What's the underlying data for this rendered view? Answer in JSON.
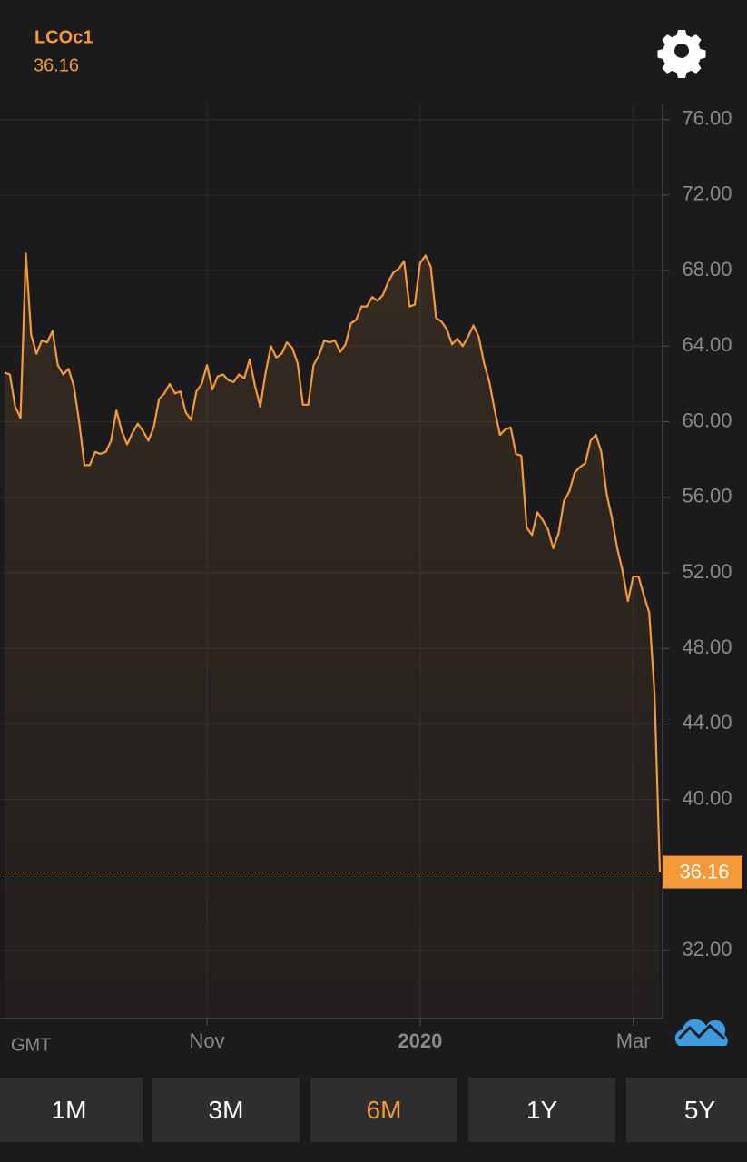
{
  "header": {
    "symbol": "LCOc1"
  },
  "chart_data": {
    "type": "line",
    "x_label": "GMT",
    "color": "#f59a3a",
    "grid": true,
    "ylim": [
      28.4,
      76.8
    ],
    "yticks": [
      {
        "value": 32,
        "label": "32.00"
      },
      {
        "value": 40,
        "label": "40.00"
      },
      {
        "value": 44,
        "label": "44.00"
      },
      {
        "value": 48,
        "label": "48.00"
      },
      {
        "value": 52,
        "label": "52.00"
      },
      {
        "value": 56,
        "label": "56.00"
      },
      {
        "value": 60,
        "label": "60.00"
      },
      {
        "value": 64,
        "label": "64.00"
      },
      {
        "value": 68,
        "label": "68.00"
      },
      {
        "value": 72,
        "label": "72.00"
      },
      {
        "value": 76,
        "label": "76.00"
      }
    ],
    "categories": [
      null,
      null,
      null,
      null,
      null,
      null,
      null,
      null,
      null,
      null,
      null,
      null,
      null,
      null,
      null,
      null,
      null,
      null,
      null,
      null,
      null,
      null,
      null,
      null,
      null,
      null,
      null,
      null,
      null,
      null,
      null,
      null,
      null,
      null,
      null,
      null,
      null,
      null,
      "Nov",
      null,
      null,
      null,
      null,
      null,
      null,
      null,
      null,
      null,
      null,
      null,
      null,
      null,
      null,
      null,
      null,
      null,
      null,
      null,
      null,
      null,
      null,
      null,
      null,
      null,
      null,
      null,
      null,
      null,
      null,
      null,
      null,
      null,
      null,
      null,
      null,
      null,
      null,
      null,
      "2020",
      null,
      null,
      null,
      null,
      null,
      null,
      null,
      null,
      null,
      null,
      null,
      null,
      null,
      null,
      null,
      null,
      null,
      null,
      null,
      null,
      null,
      null,
      null,
      null,
      null,
      null,
      null,
      null,
      null,
      null,
      null,
      null,
      null,
      null,
      null,
      null,
      null,
      null,
      null,
      "Mar",
      null,
      null,
      null,
      null,
      null
    ],
    "values": [
      62.6,
      62.5,
      60.8,
      60.2,
      68.9,
      64.6,
      63.6,
      64.3,
      64.2,
      64.8,
      63.0,
      62.5,
      62.8,
      61.9,
      60.0,
      57.7,
      57.7,
      58.4,
      58.3,
      58.4,
      59.0,
      60.6,
      59.5,
      58.8,
      59.4,
      59.9,
      59.5,
      59.0,
      59.7,
      61.2,
      61.5,
      62.0,
      61.5,
      61.6,
      60.5,
      60.1,
      61.6,
      62.0,
      63.0,
      61.7,
      62.4,
      62.5,
      62.2,
      62.1,
      62.5,
      62.3,
      63.3,
      61.9,
      60.8,
      62.6,
      64.0,
      63.4,
      63.6,
      64.2,
      63.9,
      63.1,
      60.9,
      60.9,
      63.0,
      63.5,
      64.3,
      64.2,
      64.3,
      63.7,
      64.1,
      65.2,
      65.4,
      66.1,
      66.1,
      66.6,
      66.4,
      66.7,
      67.4,
      67.9,
      68.1,
      68.5,
      66.1,
      66.2,
      68.4,
      68.8,
      68.2,
      65.5,
      65.3,
      64.9,
      64.1,
      64.4,
      64.0,
      64.5,
      65.1,
      64.5,
      63.1,
      62.1,
      60.6,
      59.3,
      59.6,
      59.7,
      58.3,
      58.2,
      54.4,
      54.0,
      55.2,
      54.8,
      54.3,
      53.3,
      54.1,
      55.8,
      56.3,
      57.3,
      57.6,
      57.8,
      59.0,
      59.3,
      58.4,
      56.2,
      54.9,
      53.3,
      52.1,
      50.5,
      51.8,
      51.8,
      50.8,
      49.9,
      45.6,
      36.16
    ]
  },
  "range_tabs": {
    "options": [
      "1M",
      "3M",
      "6M",
      "1Y",
      "5Y"
    ],
    "selected": "6M"
  }
}
